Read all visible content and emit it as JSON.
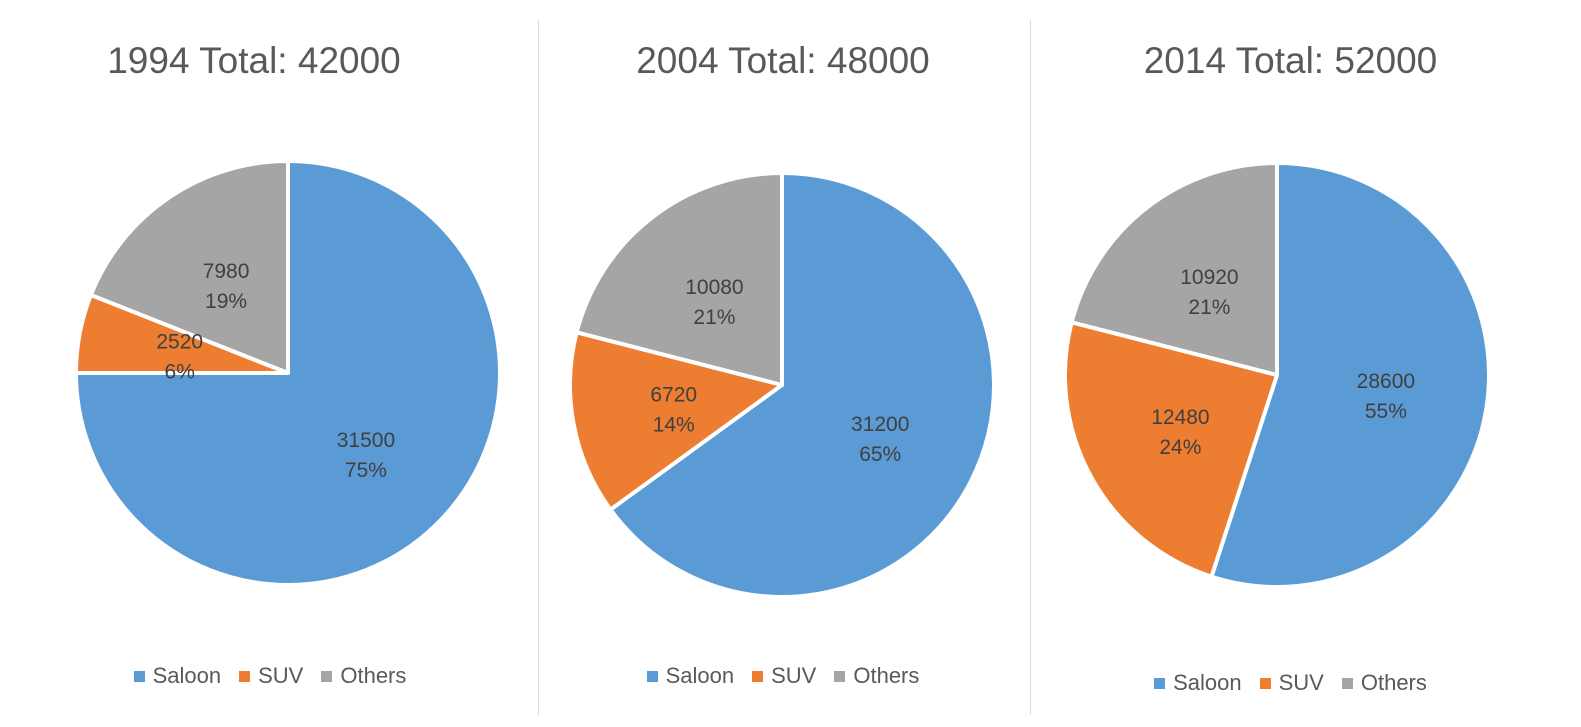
{
  "colors": {
    "Saloon": "#5b9bd5",
    "SUV": "#ed7d31",
    "Others": "#a5a5a5"
  },
  "chart_data": [
    {
      "type": "pie",
      "title": "1994 Total: 42000",
      "legend": [
        "Saloon",
        "SUV",
        "Others"
      ],
      "legend_position": "bottom",
      "slices": [
        {
          "category": "Saloon",
          "value": 31500,
          "percent": 75,
          "value_label": "31500",
          "percent_label": "75%"
        },
        {
          "category": "SUV",
          "value": 2520,
          "percent": 6,
          "value_label": "2520",
          "percent_label": "6%"
        },
        {
          "category": "Others",
          "value": 7980,
          "percent": 19,
          "value_label": "7980",
          "percent_label": "19%"
        }
      ]
    },
    {
      "type": "pie",
      "title": "2004 Total: 48000",
      "legend": [
        "Saloon",
        "SUV",
        "Others"
      ],
      "legend_position": "bottom",
      "slices": [
        {
          "category": "Saloon",
          "value": 31200,
          "percent": 65,
          "value_label": "31200",
          "percent_label": "65%"
        },
        {
          "category": "SUV",
          "value": 6720,
          "percent": 14,
          "value_label": "6720",
          "percent_label": "14%"
        },
        {
          "category": "Others",
          "value": 10080,
          "percent": 21,
          "value_label": "10080",
          "percent_label": "21%"
        }
      ]
    },
    {
      "type": "pie",
      "title": "2014 Total: 52000",
      "legend": [
        "Saloon",
        "SUV",
        "Others"
      ],
      "legend_position": "bottom",
      "slices": [
        {
          "category": "Saloon",
          "value": 28600,
          "percent": 55,
          "value_label": "28600",
          "percent_label": "55%"
        },
        {
          "category": "SUV",
          "value": 12480,
          "percent": 24,
          "value_label": "12480",
          "percent_label": "24%"
        },
        {
          "category": "Others",
          "value": 10920,
          "percent": 21,
          "value_label": "10920",
          "percent_label": "21%"
        }
      ]
    }
  ]
}
